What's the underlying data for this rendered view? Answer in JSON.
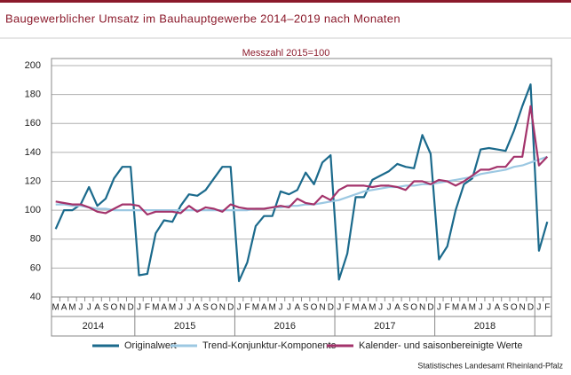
{
  "chart_data": {
    "type": "line",
    "title": "Baugewerblicher Umsatz im Bauhauptgewerbe 2014–2019 nach Monaten",
    "subtitle": "Messzahl 2015=100",
    "source": "Statistisches Landesamt  Rheinland-Pfalz",
    "categories": [
      "M",
      "A",
      "M",
      "J",
      "J",
      "A",
      "S",
      "O",
      "N",
      "D",
      "J",
      "F",
      "M",
      "A",
      "M",
      "J",
      "J",
      "A",
      "S",
      "O",
      "N",
      "D",
      "J",
      "F",
      "M",
      "A",
      "M",
      "J",
      "J",
      "A",
      "S",
      "O",
      "N",
      "D",
      "J",
      "F",
      "M",
      "A",
      "M",
      "J",
      "J",
      "A",
      "S",
      "O",
      "N",
      "D",
      "J",
      "F",
      "M",
      "A",
      "M",
      "J",
      "J",
      "A",
      "S",
      "O",
      "N",
      "D",
      "J",
      "F"
    ],
    "years": [
      "2014",
      "2015",
      "2016",
      "2017",
      "2018"
    ],
    "ylim": [
      40,
      200
    ],
    "yticks": [
      40,
      60,
      80,
      100,
      120,
      140,
      160,
      180,
      200
    ],
    "grid": true,
    "legend": "bottom",
    "series": [
      {
        "name": "Originalwert",
        "color": "#1b6a8c",
        "values": [
          87,
          100,
          100,
          104,
          116,
          103,
          108,
          122,
          130,
          130,
          55,
          56,
          84,
          93,
          92,
          103,
          111,
          110,
          114,
          122,
          130,
          130,
          51,
          64,
          89,
          96,
          96,
          113,
          111,
          114,
          126,
          118,
          133,
          138,
          52,
          70,
          109,
          109,
          121,
          124,
          127,
          132,
          130,
          129,
          152,
          139,
          66,
          75,
          100,
          118,
          122,
          142,
          143,
          142,
          141,
          155,
          172,
          187,
          72,
          92
        ]
      },
      {
        "name": "Trend-Konjunktur-Komponente",
        "color": "#9cc8e2",
        "values": [
          104,
          104,
          103,
          103,
          102,
          101,
          101,
          100,
          100,
          100,
          100,
          100,
          100,
          100,
          100,
          100,
          100,
          100,
          100,
          100,
          100,
          100,
          100,
          100,
          101,
          101,
          102,
          102,
          103,
          103,
          104,
          104,
          105,
          106,
          107,
          109,
          111,
          113,
          114,
          115,
          116,
          116,
          117,
          117,
          118,
          118,
          119,
          120,
          121,
          122,
          123,
          125,
          126,
          127,
          128,
          130,
          131,
          133,
          135,
          137
        ]
      },
      {
        "name": "Kalender- und saisonbereinigte Werte",
        "color": "#a3336b",
        "values": [
          106,
          105,
          104,
          104,
          102,
          99,
          98,
          101,
          104,
          104,
          103,
          97,
          99,
          99,
          99,
          98,
          103,
          99,
          102,
          101,
          99,
          104,
          102,
          101,
          101,
          101,
          102,
          103,
          102,
          108,
          105,
          104,
          110,
          107,
          114,
          117,
          117,
          117,
          116,
          117,
          117,
          116,
          114,
          120,
          120,
          118,
          121,
          120,
          117,
          120,
          124,
          128,
          128,
          130,
          130,
          137,
          137,
          172,
          131,
          137
        ]
      }
    ]
  }
}
